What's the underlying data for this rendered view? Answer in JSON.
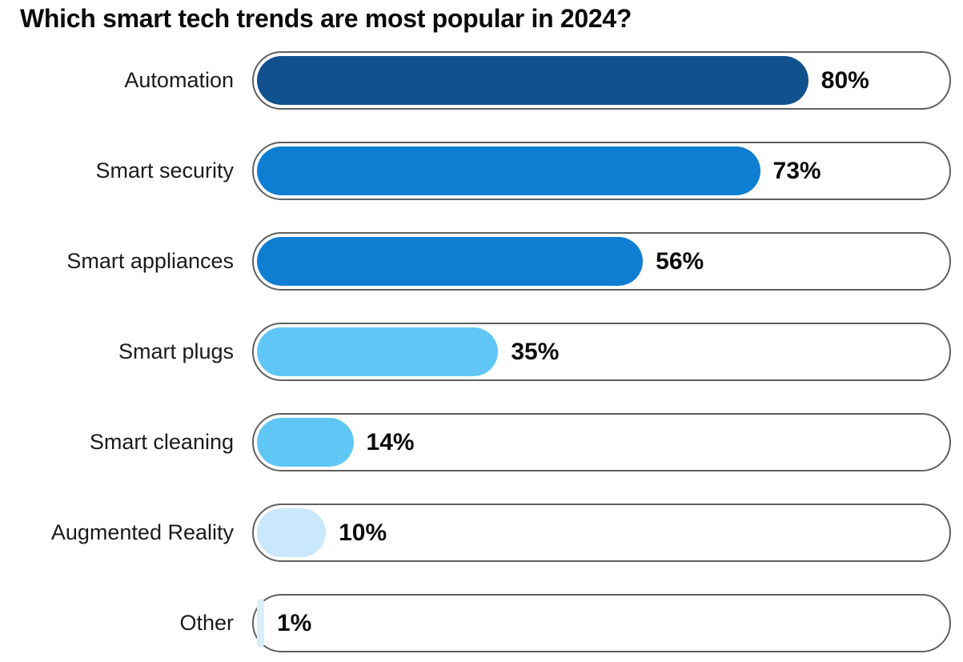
{
  "chart_data": {
    "type": "bar",
    "orientation": "horizontal",
    "title": "Which smart tech trends are most popular in 2024?",
    "categories": [
      "Automation",
      "Smart security",
      "Smart appliances",
      "Smart plugs",
      "Smart cleaning",
      "Augmented Reality",
      "Other"
    ],
    "values": [
      80,
      73,
      56,
      35,
      14,
      10,
      1
    ],
    "value_labels": [
      "80%",
      "73%",
      "56%",
      "35%",
      "14%",
      "10%",
      "1%"
    ],
    "bar_colors": [
      "#11518E",
      "#0E7ED2",
      "#0E7ED2",
      "#5FC6F5",
      "#5FC6F5",
      "#C9E8FC",
      "#D9EEFB"
    ],
    "track_border_color": "#606060",
    "track_background": "#FFFFFF",
    "title_color": "#0B0B0B",
    "label_color": "#1B1B1B",
    "value_label_color": "#0B0B0B",
    "xlim": [
      0,
      100
    ],
    "grid": false,
    "legend": false
  }
}
